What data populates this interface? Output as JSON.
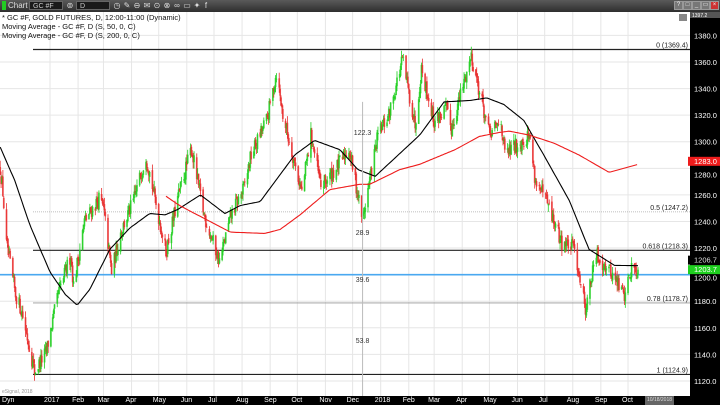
{
  "toolbar": {
    "title": "Chart",
    "symbol_value": "GC #F",
    "interval_value": "D",
    "icons": [
      "link-icon",
      "clock-icon",
      "pencil-icon",
      "minus-circle-icon",
      "mail-icon",
      "play-icon",
      "alert-icon",
      "chain-icon",
      "chat-icon",
      "twitter-icon",
      "facebook-icon"
    ],
    "window_buttons": [
      "?",
      "□",
      "_",
      "▭",
      "×"
    ]
  },
  "legend": {
    "line1": "* GC #F, GOLD FUTURES, D, 12:00-11:00 (Dynamic)",
    "line2": "Moving Average - GC #F, D (S, 50, 0, C)",
    "line3": "Moving Average - GC #F, D (S, 200, 0, C)"
  },
  "xaxis": {
    "left_label": "Dyn",
    "date_box": "10/18/2018",
    "watermark": "eSignal, 2018"
  },
  "colors": {
    "up": "#1fcf1f",
    "down": "#e82b2b",
    "ma50": "#000000",
    "ma200": "#ee1c1c",
    "hline": "#4aa8f0",
    "axis_bg": "#000000"
  },
  "chart_data": {
    "type": "candlestick",
    "ylim": [
      1110,
      1400
    ],
    "y_ticks": [
      1120,
      1140,
      1160,
      1180,
      1200,
      1220,
      1240,
      1260,
      1280,
      1300,
      1320,
      1340,
      1360,
      1380
    ],
    "x_tick_labels": [
      {
        "date": "2017-01-01",
        "label": "2017"
      },
      {
        "date": "2017-02-01",
        "label": "Feb"
      },
      {
        "date": "2017-03-01",
        "label": "Mar"
      },
      {
        "date": "2017-04-01",
        "label": "Apr"
      },
      {
        "date": "2017-05-01",
        "label": "May"
      },
      {
        "date": "2017-06-01",
        "label": "Jun"
      },
      {
        "date": "2017-07-01",
        "label": "Jul"
      },
      {
        "date": "2017-08-01",
        "label": "Aug"
      },
      {
        "date": "2017-09-01",
        "label": "Sep"
      },
      {
        "date": "2017-10-01",
        "label": "Oct"
      },
      {
        "date": "2017-11-01",
        "label": "Nov"
      },
      {
        "date": "2017-12-01",
        "label": "Dec"
      },
      {
        "date": "2018-01-01",
        "label": "2018"
      },
      {
        "date": "2018-02-01",
        "label": "Feb"
      },
      {
        "date": "2018-03-01",
        "label": "Mar"
      },
      {
        "date": "2018-04-01",
        "label": "Apr"
      },
      {
        "date": "2018-05-01",
        "label": "May"
      },
      {
        "date": "2018-06-01",
        "label": "Jun"
      },
      {
        "date": "2018-07-01",
        "label": "Jul"
      },
      {
        "date": "2018-08-01",
        "label": "Aug"
      },
      {
        "date": "2018-09-01",
        "label": "Sep"
      },
      {
        "date": "2018-10-01",
        "label": "Oct"
      }
    ],
    "grid": true,
    "price_path": [
      [
        "2016-11-07",
        1280
      ],
      [
        "2016-11-10",
        1262
      ],
      [
        "2016-11-14",
        1222
      ],
      [
        "2016-11-24",
        1185
      ],
      [
        "2016-12-01",
        1172
      ],
      [
        "2016-12-15",
        1127
      ],
      [
        "2016-12-28",
        1142
      ],
      [
        "2017-01-10",
        1185
      ],
      [
        "2017-01-24",
        1215
      ],
      [
        "2017-01-27",
        1192
      ],
      [
        "2017-02-08",
        1240
      ],
      [
        "2017-02-24",
        1257
      ],
      [
        "2017-03-01",
        1250
      ],
      [
        "2017-03-10",
        1202
      ],
      [
        "2017-03-20",
        1232
      ],
      [
        "2017-04-03",
        1255
      ],
      [
        "2017-04-17",
        1290
      ],
      [
        "2017-05-09",
        1217
      ],
      [
        "2017-05-23",
        1260
      ],
      [
        "2017-06-06",
        1295
      ],
      [
        "2017-06-20",
        1245
      ],
      [
        "2017-07-07",
        1210
      ],
      [
        "2017-07-20",
        1245
      ],
      [
        "2017-08-03",
        1265
      ],
      [
        "2017-08-11",
        1290
      ],
      [
        "2017-08-29",
        1318
      ],
      [
        "2017-09-08",
        1352
      ],
      [
        "2017-09-15",
        1320
      ],
      [
        "2017-10-06",
        1262
      ],
      [
        "2017-10-16",
        1305
      ],
      [
        "2017-10-27",
        1266
      ],
      [
        "2017-11-13",
        1280
      ],
      [
        "2017-11-27",
        1295
      ],
      [
        "2017-12-12",
        1242
      ],
      [
        "2017-12-29",
        1305
      ],
      [
        "2018-01-10",
        1320
      ],
      [
        "2018-01-25",
        1362
      ],
      [
        "2018-02-08",
        1313
      ],
      [
        "2018-02-15",
        1355
      ],
      [
        "2018-03-01",
        1315
      ],
      [
        "2018-03-14",
        1325
      ],
      [
        "2018-03-20",
        1310
      ],
      [
        "2018-04-11",
        1365
      ],
      [
        "2018-04-20",
        1338
      ],
      [
        "2018-05-01",
        1305
      ],
      [
        "2018-05-14",
        1315
      ],
      [
        "2018-05-18",
        1290
      ],
      [
        "2018-06-01",
        1298
      ],
      [
        "2018-06-14",
        1305
      ],
      [
        "2018-06-21",
        1270
      ],
      [
        "2018-07-03",
        1255
      ],
      [
        "2018-07-19",
        1225
      ],
      [
        "2018-08-03",
        1220
      ],
      [
        "2018-08-15",
        1175
      ],
      [
        "2018-08-27",
        1215
      ],
      [
        "2018-09-14",
        1200
      ],
      [
        "2018-09-27",
        1185
      ],
      [
        "2018-10-05",
        1205
      ],
      [
        "2018-10-12",
        1203.7
      ]
    ],
    "series": [
      {
        "name": "Moving Average - GC #F, D (S, 50, 0, C)",
        "points": [
          [
            "2016-11-07",
            1296
          ],
          [
            "2016-11-23",
            1271
          ],
          [
            "2016-12-10",
            1237
          ],
          [
            "2017-01-01",
            1202
          ],
          [
            "2017-01-18",
            1185
          ],
          [
            "2017-01-31",
            1177
          ],
          [
            "2017-02-14",
            1189
          ],
          [
            "2017-03-08",
            1219
          ],
          [
            "2017-03-30",
            1235
          ],
          [
            "2017-04-21",
            1246
          ],
          [
            "2017-05-08",
            1245
          ],
          [
            "2017-05-22",
            1249
          ],
          [
            "2017-06-16",
            1260
          ],
          [
            "2017-07-13",
            1246
          ],
          [
            "2017-07-30",
            1252
          ],
          [
            "2017-08-21",
            1255
          ],
          [
            "2017-09-28",
            1290
          ],
          [
            "2017-10-20",
            1301
          ],
          [
            "2017-11-17",
            1294
          ],
          [
            "2017-12-07",
            1279
          ],
          [
            "2017-12-26",
            1274
          ],
          [
            "2018-02-13",
            1305
          ],
          [
            "2018-03-12",
            1330
          ],
          [
            "2018-04-09",
            1331
          ],
          [
            "2018-04-28",
            1333
          ],
          [
            "2018-05-17",
            1328
          ],
          [
            "2018-06-08",
            1316
          ],
          [
            "2018-06-30",
            1290
          ],
          [
            "2018-07-28",
            1256
          ],
          [
            "2018-08-19",
            1219
          ],
          [
            "2018-09-16",
            1207
          ],
          [
            "2018-10-12",
            1206.7
          ]
        ]
      },
      {
        "name": "Moving Average - GC #F, D (S, 200, 0, C)",
        "points": [
          [
            "2017-05-09",
            1259
          ],
          [
            "2017-05-24",
            1252
          ],
          [
            "2017-07-19",
            1232
          ],
          [
            "2017-08-26",
            1231
          ],
          [
            "2017-09-12",
            1234
          ],
          [
            "2017-10-04",
            1245
          ],
          [
            "2017-11-06",
            1264
          ],
          [
            "2017-12-09",
            1268
          ],
          [
            "2017-12-20",
            1268
          ],
          [
            "2018-01-22",
            1279
          ],
          [
            "2018-02-13",
            1283
          ],
          [
            "2018-03-24",
            1294
          ],
          [
            "2018-04-20",
            1304
          ],
          [
            "2018-05-12",
            1307
          ],
          [
            "2018-05-23",
            1308
          ],
          [
            "2018-06-14",
            1305
          ],
          [
            "2018-07-11",
            1299
          ],
          [
            "2018-08-08",
            1290
          ],
          [
            "2018-09-10",
            1277
          ],
          [
            "2018-10-12",
            1283
          ]
        ]
      }
    ],
    "fibonacci": [
      {
        "label": "0 (1369.4)",
        "value": 1369.4,
        "style": "solid"
      },
      {
        "label": "0.5 (1247.2)",
        "value": 1247.2,
        "style": "dotted"
      },
      {
        "label": "0.618 (1218.3)",
        "value": 1218.3,
        "style": "solid"
      },
      {
        "label": "0.78 (1178.7)",
        "value": 1178.7,
        "style": "gray"
      },
      {
        "label": "1 (1124.9)",
        "value": 1124.9,
        "style": "solid"
      }
    ],
    "horizontal_line": 1200,
    "measure_annotations": [
      "122.3",
      "28.9",
      "39.6",
      "53.8"
    ],
    "price_tags": [
      {
        "label": "1397.2",
        "value": 1397.2,
        "color": "#555555"
      },
      {
        "label": "1283.0",
        "value": 1283.0,
        "color": "#ee1c1c"
      },
      {
        "label": "1206.7",
        "value": 1206.7,
        "color": "#000000"
      },
      {
        "label": "1203.7",
        "value": 1203.7,
        "color": "#1fcf1f"
      }
    ]
  }
}
